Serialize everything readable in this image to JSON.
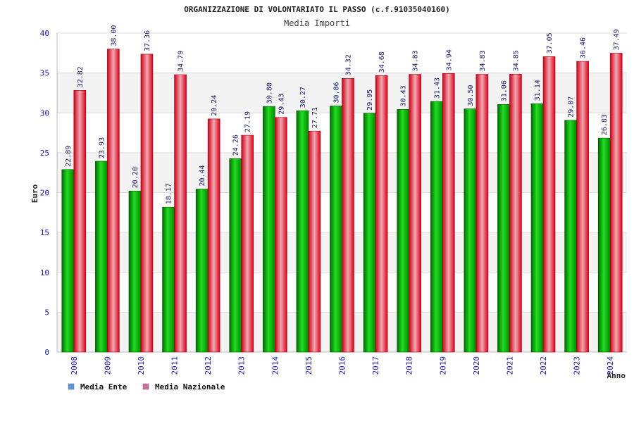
{
  "chart_data": {
    "type": "bar",
    "title": "ORGANIZZAZIONE DI VOLONTARIATO IL PASSO (c.f.91035040160)",
    "subtitle": "Media Importi",
    "xlabel": "Anno",
    "ylabel": "Euro",
    "ylim": [
      0,
      40
    ],
    "yticks": [
      0,
      5,
      10,
      15,
      20,
      25,
      30,
      35,
      40
    ],
    "categories": [
      "2008",
      "2009",
      "2010",
      "2011",
      "2012",
      "2013",
      "2014",
      "2015",
      "2016",
      "2017",
      "2018",
      "2019",
      "2020",
      "2021",
      "2022",
      "2023",
      "2024"
    ],
    "series": [
      {
        "name": "Media Ente",
        "color": "#00a000",
        "values": [
          22.89,
          23.93,
          20.2,
          18.17,
          20.44,
          24.26,
          30.8,
          30.27,
          30.86,
          29.95,
          30.43,
          31.43,
          30.5,
          31.06,
          31.14,
          29.07,
          26.83
        ],
        "labels": [
          "22.89",
          "23.93",
          "20.20",
          "18.17",
          "20.44",
          "24.26",
          "30.80",
          "30.27",
          "30.86",
          "29.95",
          "30.43",
          "31.43",
          "30.50",
          "31.06",
          "31.14",
          "29.07",
          "26.83"
        ]
      },
      {
        "name": "Media Nazionale",
        "color": "#e0001a",
        "values": [
          32.82,
          38.0,
          37.36,
          34.79,
          29.24,
          27.19,
          29.43,
          27.71,
          34.32,
          34.68,
          34.83,
          34.94,
          34.83,
          34.85,
          37.05,
          36.46,
          37.49
        ],
        "labels": [
          "32.82",
          "38.00",
          "37.36",
          "34.79",
          "29.24",
          "27.19",
          "29.43",
          "27.71",
          "34.32",
          "34.68",
          "34.83",
          "34.94",
          "34.83",
          "34.85",
          "37.05",
          "36.46",
          "37.49"
        ]
      }
    ],
    "grid": true,
    "legend_position": "bottom-left",
    "legend_colors": [
      "#5b9bd5",
      "#d070a0"
    ]
  }
}
